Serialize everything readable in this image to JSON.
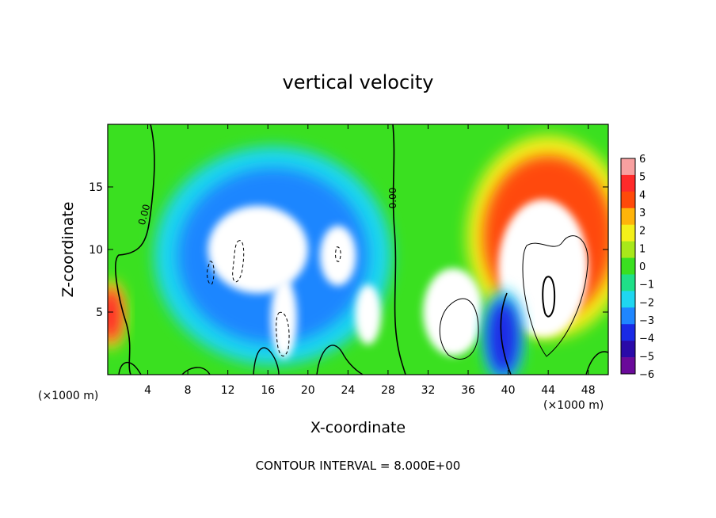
{
  "chart_data": {
    "type": "heatmap",
    "title": "vertical velocity",
    "xlabel": "X-coordinate",
    "ylabel": "Z-coordinate",
    "x_unit": "(×1000 m)",
    "xlim": [
      0,
      50
    ],
    "ylim": [
      0,
      20
    ],
    "x_ticks": [
      4,
      8,
      12,
      16,
      20,
      24,
      28,
      32,
      36,
      40,
      44,
      48
    ],
    "y_ticks": [
      5,
      10,
      15
    ],
    "colorbar": {
      "range": [
        -6,
        6
      ],
      "ticks": [
        6,
        5,
        4,
        3,
        2,
        1,
        0,
        -1,
        -2,
        -3,
        -4,
        -5,
        -6
      ],
      "tick_labels": [
        "6",
        "5",
        "4",
        "3",
        "2",
        "1",
        "0",
        "−1",
        "−2",
        "−3",
        "−4",
        "−5",
        "−6"
      ],
      "colors": [
        "#6a0a9a",
        "#2a0aa8",
        "#1a2ae6",
        "#1f86ff",
        "#1fd6f0",
        "#1fe088",
        "#3ae020",
        "#a8e81a",
        "#f4f01a",
        "#ffb40a",
        "#ff4a0a",
        "#ff2a2a",
        "#f8a0a0"
      ]
    },
    "contour_interval_label": "CONTOUR INTERVAL = 8.000E+00",
    "contour_labels": [
      "0.00",
      "0.00"
    ],
    "features": [
      {
        "name": "background",
        "value": 1.0
      },
      {
        "name": "left edge updraft",
        "x": 0.3,
        "z": 4.8,
        "rx": 1.2,
        "rz": 2.2,
        "value": 4.5
      },
      {
        "name": "downdraft envelope",
        "x": 16.5,
        "z": 9.5,
        "rx": 9.5,
        "rz": 7.0,
        "value": -3.2
      },
      {
        "name": "downdraft core upper",
        "x": 15.0,
        "z": 10.0,
        "rx": 5.0,
        "rz": 3.5,
        "value": -8.0
      },
      {
        "name": "downdraft core lower",
        "x": 17.6,
        "z": 4.5,
        "rx": 1.3,
        "rz": 3.2,
        "value": -8.0
      },
      {
        "name": "downdraft core right",
        "x": 23.0,
        "z": 9.5,
        "rx": 1.8,
        "rz": 2.4,
        "value": -7.5
      },
      {
        "name": "downdraft core far right",
        "x": 26.0,
        "z": 4.8,
        "rx": 1.3,
        "rz": 2.4,
        "value": -7.5
      },
      {
        "name": "updraft arc",
        "x": 44.0,
        "z": 11.0,
        "rx": 6.5,
        "rz": 6.5,
        "value": 4.0
      },
      {
        "name": "updraft core left",
        "x": 34.5,
        "z": 5.0,
        "rx": 3.0,
        "rz": 3.5,
        "value": 8.0
      },
      {
        "name": "updraft core right",
        "x": 43.5,
        "z": 8.5,
        "rx": 4.5,
        "rz": 5.5,
        "value": 8.0
      },
      {
        "name": "low-level downdraft",
        "x": 39.5,
        "z": 3.0,
        "rx": 1.6,
        "rz": 3.0,
        "value": -4.5
      }
    ]
  }
}
